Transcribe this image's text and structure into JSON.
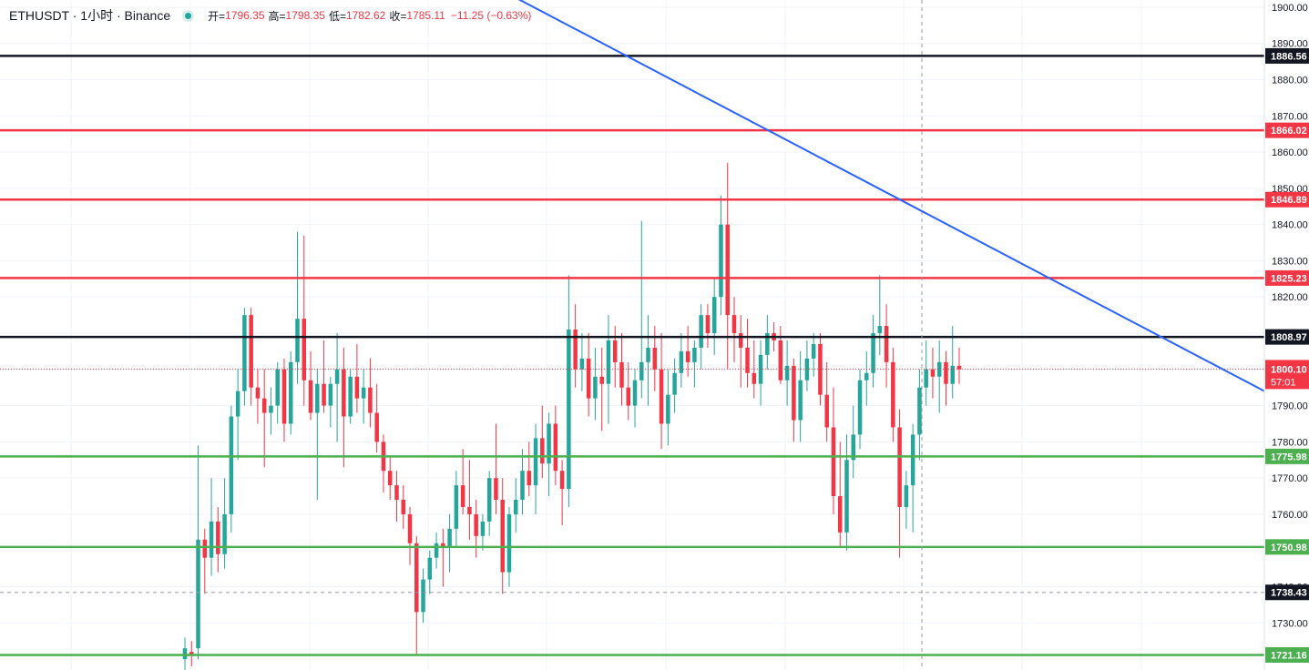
{
  "header": {
    "symbol": "ETHUSDT · 1小时 · Binance",
    "open_label": "开=",
    "open": "1796.35",
    "high_label": "高=",
    "high": "1798.35",
    "low_label": "低=",
    "low": "1782.62",
    "close_label": "收=",
    "close": "1785.11",
    "change": "−11.25 (−0.63%)"
  },
  "colors": {
    "up": "#26a69a",
    "down": "#f23645",
    "resistance": "#f23645",
    "support": "#4caf50",
    "key_level": "#131722",
    "trendline": "#2962ff"
  },
  "chart_data": {
    "type": "candlestick",
    "y_axis": {
      "ylim": [
        1717,
        1902
      ],
      "ticks": [
        1900,
        1890,
        1880,
        1870,
        1860,
        1850,
        1840,
        1830,
        1820,
        1810,
        1800,
        1790,
        1780,
        1770,
        1760,
        1750,
        1740,
        1730,
        1720
      ],
      "tick_labels": [
        "1900.00",
        "1890.00",
        "1880.00",
        "1870.00",
        "1860.00",
        "1850.00",
        "1840.00",
        "1830.00",
        "1820.00",
        "1810.00",
        "1800.00",
        "1790.00",
        "1780.00",
        "1770.00",
        "1760.00",
        "1750.00",
        "1740.00",
        "1730.00",
        "1720.00"
      ]
    },
    "grid": true,
    "horizontal_lines": [
      {
        "value": 1886.56,
        "label": "1886.56",
        "role": "key_level"
      },
      {
        "value": 1866.02,
        "label": "1866.02",
        "role": "resistance"
      },
      {
        "value": 1846.89,
        "label": "1846.89",
        "role": "resistance"
      },
      {
        "value": 1825.23,
        "label": "1825.23",
        "role": "resistance"
      },
      {
        "value": 1808.97,
        "label": "1808.97",
        "role": "key_level"
      },
      {
        "value": 1775.98,
        "label": "1775.98",
        "role": "support"
      },
      {
        "value": 1750.98,
        "label": "1750.98",
        "role": "support"
      },
      {
        "value": 1721.16,
        "label": "1721.16",
        "role": "support"
      }
    ],
    "current_price": {
      "value": 1800.1,
      "label": "1800.10",
      "countdown": "57:01"
    },
    "crosshair": {
      "value": 1738.43,
      "label": "1738.43"
    },
    "trendline": {
      "from": [
        0.395,
        1905
      ],
      "to": [
        1.0,
        1794
      ]
    },
    "candles": [
      [
        1720,
        1726,
        1716,
        1723
      ],
      [
        1722,
        1725,
        1718,
        1721
      ],
      [
        1723,
        1779,
        1720,
        1753
      ],
      [
        1753,
        1756,
        1738,
        1748
      ],
      [
        1748,
        1770,
        1743,
        1758
      ],
      [
        1758,
        1762,
        1744,
        1749
      ],
      [
        1749,
        1770,
        1745,
        1760
      ],
      [
        1760,
        1790,
        1755,
        1787
      ],
      [
        1787,
        1800,
        1775,
        1794
      ],
      [
        1794,
        1817,
        1790,
        1815
      ],
      [
        1815,
        1817,
        1790,
        1795
      ],
      [
        1795,
        1800,
        1785,
        1792
      ],
      [
        1792,
        1800,
        1773,
        1788
      ],
      [
        1788,
        1795,
        1782,
        1790
      ],
      [
        1790,
        1802,
        1785,
        1800
      ],
      [
        1800,
        1803,
        1780,
        1785
      ],
      [
        1785,
        1805,
        1782,
        1802
      ],
      [
        1802,
        1838,
        1796,
        1814
      ],
      [
        1814,
        1837,
        1790,
        1797
      ],
      [
        1797,
        1805,
        1786,
        1788
      ],
      [
        1788,
        1800,
        1764,
        1796
      ],
      [
        1796,
        1808,
        1788,
        1790
      ],
      [
        1790,
        1798,
        1784,
        1796
      ],
      [
        1796,
        1810,
        1780,
        1800
      ],
      [
        1800,
        1806,
        1773,
        1787
      ],
      [
        1787,
        1800,
        1785,
        1798
      ],
      [
        1798,
        1807,
        1788,
        1792
      ],
      [
        1792,
        1800,
        1785,
        1795
      ],
      [
        1795,
        1803,
        1784,
        1788
      ],
      [
        1788,
        1796,
        1777,
        1780
      ],
      [
        1780,
        1782,
        1766,
        1772
      ],
      [
        1772,
        1776,
        1764,
        1768
      ],
      [
        1768,
        1772,
        1758,
        1764
      ],
      [
        1764,
        1768,
        1756,
        1760
      ],
      [
        1760,
        1762,
        1746,
        1752
      ],
      [
        1752,
        1754,
        1721,
        1733
      ],
      [
        1733,
        1745,
        1730,
        1742
      ],
      [
        1742,
        1750,
        1738,
        1748
      ],
      [
        1748,
        1755,
        1745,
        1752
      ],
      [
        1752,
        1756,
        1740,
        1751
      ],
      [
        1751,
        1760,
        1744,
        1756
      ],
      [
        1756,
        1772,
        1751,
        1768
      ],
      [
        1768,
        1778,
        1760,
        1762
      ],
      [
        1762,
        1775,
        1753,
        1760
      ],
      [
        1760,
        1764,
        1748,
        1754
      ],
      [
        1754,
        1760,
        1750,
        1758
      ],
      [
        1758,
        1772,
        1754,
        1770
      ],
      [
        1770,
        1785,
        1760,
        1764
      ],
      [
        1764,
        1770,
        1738,
        1744
      ],
      [
        1744,
        1762,
        1740,
        1760
      ],
      [
        1760,
        1770,
        1755,
        1764
      ],
      [
        1764,
        1778,
        1760,
        1772
      ],
      [
        1772,
        1780,
        1765,
        1768
      ],
      [
        1768,
        1785,
        1760,
        1781
      ],
      [
        1781,
        1790,
        1770,
        1774
      ],
      [
        1774,
        1788,
        1765,
        1785
      ],
      [
        1785,
        1790,
        1768,
        1772
      ],
      [
        1772,
        1775,
        1757,
        1767
      ],
      [
        1767,
        1826,
        1762,
        1811
      ],
      [
        1811,
        1818,
        1795,
        1800
      ],
      [
        1800,
        1810,
        1794,
        1803
      ],
      [
        1803,
        1810,
        1787,
        1792
      ],
      [
        1792,
        1806,
        1786,
        1798
      ],
      [
        1798,
        1806,
        1783,
        1796
      ],
      [
        1796,
        1815,
        1785,
        1808
      ],
      [
        1808,
        1812,
        1795,
        1802
      ],
      [
        1802,
        1810,
        1790,
        1795
      ],
      [
        1795,
        1802,
        1786,
        1790
      ],
      [
        1790,
        1800,
        1784,
        1797
      ],
      [
        1797,
        1841,
        1792,
        1802
      ],
      [
        1802,
        1815,
        1790,
        1806
      ],
      [
        1806,
        1812,
        1794,
        1800
      ],
      [
        1800,
        1810,
        1778,
        1785
      ],
      [
        1785,
        1800,
        1779,
        1793
      ],
      [
        1793,
        1803,
        1788,
        1799
      ],
      [
        1799,
        1810,
        1795,
        1805
      ],
      [
        1805,
        1812,
        1798,
        1802
      ],
      [
        1802,
        1808,
        1795,
        1806
      ],
      [
        1806,
        1818,
        1800,
        1815
      ],
      [
        1815,
        1818,
        1806,
        1810
      ],
      [
        1810,
        1825,
        1804,
        1820
      ],
      [
        1820,
        1848,
        1815,
        1840
      ],
      [
        1840,
        1857,
        1800,
        1815
      ],
      [
        1815,
        1820,
        1802,
        1810
      ],
      [
        1810,
        1815,
        1795,
        1806
      ],
      [
        1806,
        1814,
        1795,
        1799
      ],
      [
        1799,
        1808,
        1792,
        1796
      ],
      [
        1796,
        1808,
        1790,
        1804
      ],
      [
        1804,
        1815,
        1800,
        1810
      ],
      [
        1810,
        1813,
        1805,
        1808
      ],
      [
        1808,
        1812,
        1796,
        1797
      ],
      [
        1797,
        1808,
        1790,
        1801
      ],
      [
        1801,
        1803,
        1780,
        1786
      ],
      [
        1786,
        1805,
        1780,
        1797
      ],
      [
        1797,
        1808,
        1794,
        1803
      ],
      [
        1803,
        1810,
        1798,
        1807
      ],
      [
        1807,
        1810,
        1790,
        1793
      ],
      [
        1793,
        1802,
        1780,
        1784
      ],
      [
        1784,
        1795,
        1760,
        1765
      ],
      [
        1765,
        1780,
        1751,
        1755
      ],
      [
        1755,
        1782,
        1750,
        1775
      ],
      [
        1775,
        1790,
        1770,
        1782
      ],
      [
        1782,
        1800,
        1778,
        1797
      ],
      [
        1797,
        1805,
        1790,
        1799
      ],
      [
        1799,
        1815,
        1795,
        1810
      ],
      [
        1810,
        1826,
        1804,
        1812
      ],
      [
        1812,
        1818,
        1795,
        1802
      ],
      [
        1802,
        1806,
        1780,
        1784
      ],
      [
        1784,
        1789,
        1748,
        1762
      ],
      [
        1762,
        1772,
        1756,
        1768
      ],
      [
        1768,
        1785,
        1755,
        1782
      ],
      [
        1782,
        1800,
        1775,
        1795
      ],
      [
        1795,
        1808,
        1790,
        1800
      ],
      [
        1800,
        1806,
        1792,
        1798
      ],
      [
        1798,
        1808,
        1788,
        1802
      ],
      [
        1802,
        1805,
        1790,
        1796
      ],
      [
        1796,
        1812,
        1792,
        1801
      ],
      [
        1801,
        1806,
        1796,
        1800
      ]
    ]
  },
  "price_axis_labels": {
    "current": "1800.10",
    "countdown": "57:01",
    "crosshair": "1738.43"
  }
}
